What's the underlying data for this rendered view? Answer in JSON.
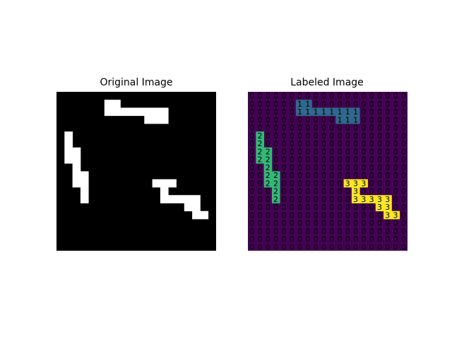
{
  "chart_data": [
    {
      "type": "heatmap",
      "title": "Original Image",
      "rows": 20,
      "cols": 20,
      "colormap": "gray",
      "colors": {
        "background": "#000000",
        "foreground": "#ffffff"
      },
      "axes": "off",
      "cells_set": [
        [
          1,
          6
        ],
        [
          1,
          7
        ],
        [
          2,
          6
        ],
        [
          2,
          7
        ],
        [
          2,
          8
        ],
        [
          2,
          9
        ],
        [
          2,
          10
        ],
        [
          2,
          11
        ],
        [
          2,
          12
        ],
        [
          2,
          13
        ],
        [
          3,
          11
        ],
        [
          3,
          12
        ],
        [
          3,
          13
        ],
        [
          5,
          1
        ],
        [
          6,
          1
        ],
        [
          7,
          1
        ],
        [
          7,
          2
        ],
        [
          8,
          1
        ],
        [
          8,
          2
        ],
        [
          9,
          2
        ],
        [
          10,
          2
        ],
        [
          10,
          3
        ],
        [
          11,
          2
        ],
        [
          11,
          3
        ],
        [
          12,
          3
        ],
        [
          13,
          3
        ],
        [
          11,
          12
        ],
        [
          11,
          13
        ],
        [
          11,
          14
        ],
        [
          12,
          13
        ],
        [
          13,
          13
        ],
        [
          13,
          14
        ],
        [
          13,
          15
        ],
        [
          13,
          16
        ],
        [
          13,
          17
        ],
        [
          14,
          16
        ],
        [
          14,
          17
        ],
        [
          15,
          17
        ],
        [
          15,
          18
        ]
      ]
    },
    {
      "type": "heatmap",
      "title": "Labeled Image",
      "rows": 20,
      "cols": 20,
      "colormap": "viridis",
      "axes": "off",
      "label_colors": {
        "0": "#440154",
        "1": "#31688e",
        "2": "#35b779",
        "3": "#fde725"
      },
      "text_color": "#000000",
      "components": [
        {
          "label": 1,
          "cells": [
            [
              1,
              6
            ],
            [
              1,
              7
            ],
            [
              2,
              6
            ],
            [
              2,
              7
            ],
            [
              2,
              8
            ],
            [
              2,
              9
            ],
            [
              2,
              10
            ],
            [
              2,
              11
            ],
            [
              2,
              12
            ],
            [
              2,
              13
            ],
            [
              3,
              11
            ],
            [
              3,
              12
            ],
            [
              3,
              13
            ]
          ]
        },
        {
          "label": 2,
          "cells": [
            [
              5,
              1
            ],
            [
              6,
              1
            ],
            [
              7,
              1
            ],
            [
              7,
              2
            ],
            [
              8,
              1
            ],
            [
              8,
              2
            ],
            [
              9,
              2
            ],
            [
              10,
              2
            ],
            [
              10,
              3
            ],
            [
              11,
              2
            ],
            [
              11,
              3
            ],
            [
              12,
              3
            ],
            [
              13,
              3
            ]
          ]
        },
        {
          "label": 3,
          "cells": [
            [
              11,
              12
            ],
            [
              11,
              13
            ],
            [
              11,
              14
            ],
            [
              12,
              13
            ],
            [
              13,
              13
            ],
            [
              13,
              14
            ],
            [
              13,
              15
            ],
            [
              13,
              16
            ],
            [
              13,
              17
            ],
            [
              14,
              16
            ],
            [
              14,
              17
            ],
            [
              15,
              17
            ],
            [
              15,
              18
            ]
          ]
        }
      ]
    }
  ]
}
